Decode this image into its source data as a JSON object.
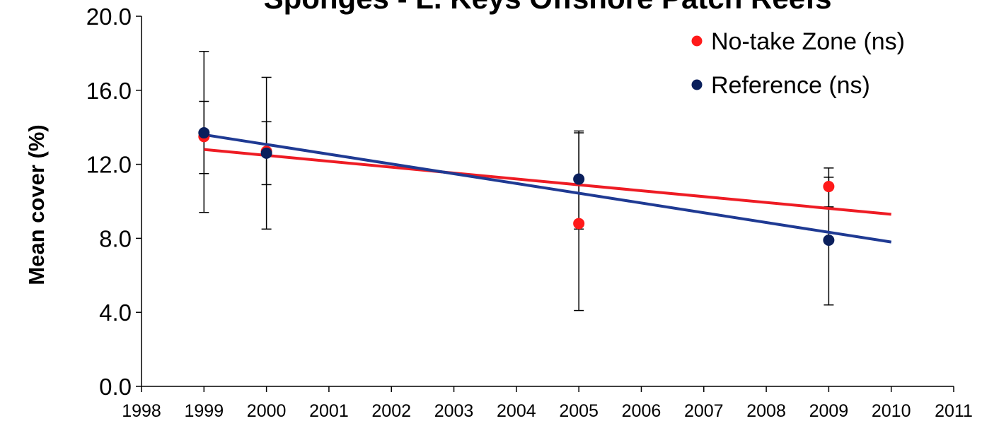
{
  "chart_data": {
    "type": "scatter",
    "title": "Sponges - L. Keys Offshore Patch Reefs",
    "xlabel": "",
    "ylabel": "Mean cover (%)",
    "xlim": [
      1998,
      2011
    ],
    "ylim": [
      0,
      20
    ],
    "x_ticks": [
      "1998",
      "1999",
      "2000",
      "2001",
      "2002",
      "2003",
      "2004",
      "2005",
      "2006",
      "2007",
      "2008",
      "2009",
      "2010",
      "2011"
    ],
    "y_ticks": [
      "0.0",
      "4.0",
      "8.0",
      "12.0",
      "16.0",
      "20.0"
    ],
    "legend_position": "top-right",
    "series": [
      {
        "name": "No-take Zone (ns)",
        "color": "#ff1a1a",
        "points": [
          {
            "x": 1999,
            "y": 13.5,
            "err_low": 9.4,
            "err_high": 15.4
          },
          {
            "x": 2000,
            "y": 12.7,
            "err_low": 10.9,
            "err_high": 14.3
          },
          {
            "x": 2005,
            "y": 8.8,
            "err_low": 4.1,
            "err_high": 13.8
          },
          {
            "x": 2009,
            "y": 10.8,
            "err_low": 9.7,
            "err_high": 11.8
          }
        ],
        "trend": {
          "x": [
            1999,
            2010
          ],
          "y": [
            12.8,
            9.3
          ]
        }
      },
      {
        "name": "Reference (ns)",
        "color": "#0a1f5c",
        "points": [
          {
            "x": 1999,
            "y": 13.7,
            "err_low": 11.5,
            "err_high": 18.1
          },
          {
            "x": 2000,
            "y": 12.6,
            "err_low": 8.5,
            "err_high": 16.7
          },
          {
            "x": 2005,
            "y": 11.2,
            "err_low": 8.5,
            "err_high": 13.7
          },
          {
            "x": 2009,
            "y": 7.9,
            "err_low": 4.4,
            "err_high": 11.3
          }
        ],
        "trend": {
          "x": [
            1999,
            2010
          ],
          "y": [
            13.6,
            7.8
          ]
        }
      }
    ],
    "trend_colors": {
      "No-take Zone (ns)": "#ee1c24",
      "Reference (ns)": "#1f3a93"
    },
    "grid": false
  }
}
